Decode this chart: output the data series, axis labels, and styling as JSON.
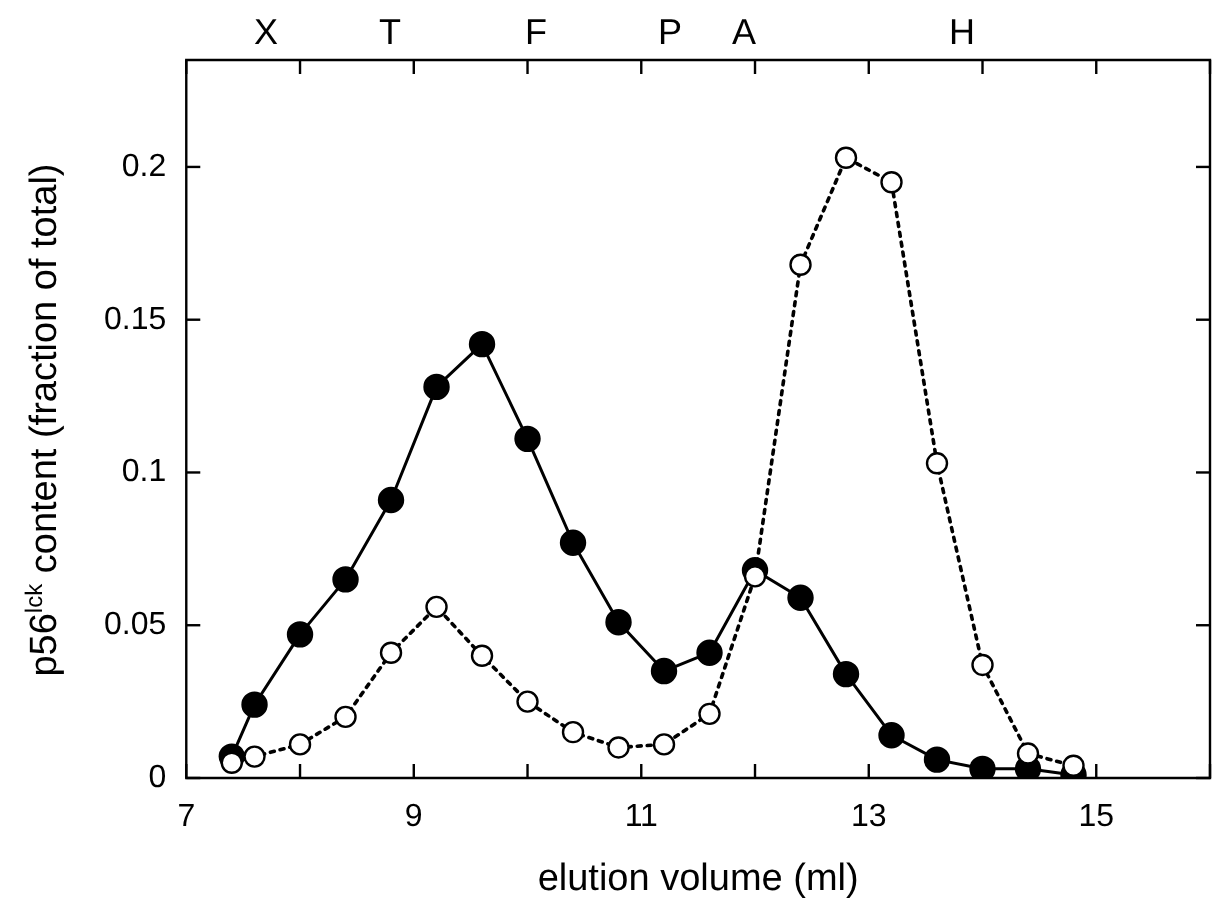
{
  "chart_data": {
    "type": "line",
    "xlabel": "elution volume (ml)",
    "ylabel": "p56$^{lck}$ content  (fraction of total)",
    "xlim": [
      7,
      16
    ],
    "xticks": [
      7,
      {
        "value": 8,
        "label": null
      },
      9,
      {
        "value": 10,
        "label": null
      },
      11,
      {
        "value": 12,
        "label": null
      },
      13,
      {
        "value": 14,
        "label": null
      },
      15,
      {
        "value": 16,
        "label": null
      }
    ],
    "ylim": [
      0,
      0.235
    ],
    "yticks": [
      0,
      0.05,
      0.1,
      0.15,
      0.2
    ],
    "marker": "circle",
    "series": [
      {
        "color": "#000000",
        "line_style": "solid",
        "x": [
          7.4,
          7.6,
          8.0,
          8.4,
          8.8,
          9.2,
          9.6,
          10.0,
          10.4,
          10.8,
          11.2,
          11.6,
          12.0,
          12.4,
          12.8,
          13.2,
          13.6,
          14.0,
          14.4,
          14.8
        ],
        "values": [
          0.007,
          0.024,
          0.047,
          0.065,
          0.091,
          0.128,
          0.142,
          0.111,
          0.077,
          0.051,
          0.035,
          0.041,
          0.068,
          0.059,
          0.034,
          0.014,
          0.006,
          0.003,
          0.003,
          0.001
        ]
      },
      {
        "color": "#000000",
        "line_style": "dotted",
        "x": [
          7.4,
          7.6,
          8.0,
          8.4,
          8.8,
          9.2,
          9.6,
          10.0,
          10.4,
          10.8,
          11.2,
          11.6,
          12.0,
          12.4,
          12.8,
          13.2,
          13.6,
          14.0,
          14.4,
          14.8
        ],
        "values": [
          0.005,
          0.007,
          0.011,
          0.02,
          0.041,
          0.056,
          0.04,
          0.025,
          0.015,
          0.01,
          0.011,
          0.021,
          0.066,
          0.168,
          0.203,
          0.195,
          0.103,
          0.037,
          0.008,
          0.004
        ]
      }
    ],
    "annotations": [
      "X",
      "T",
      "F",
      "P",
      "A",
      "H"
    ]
  }
}
